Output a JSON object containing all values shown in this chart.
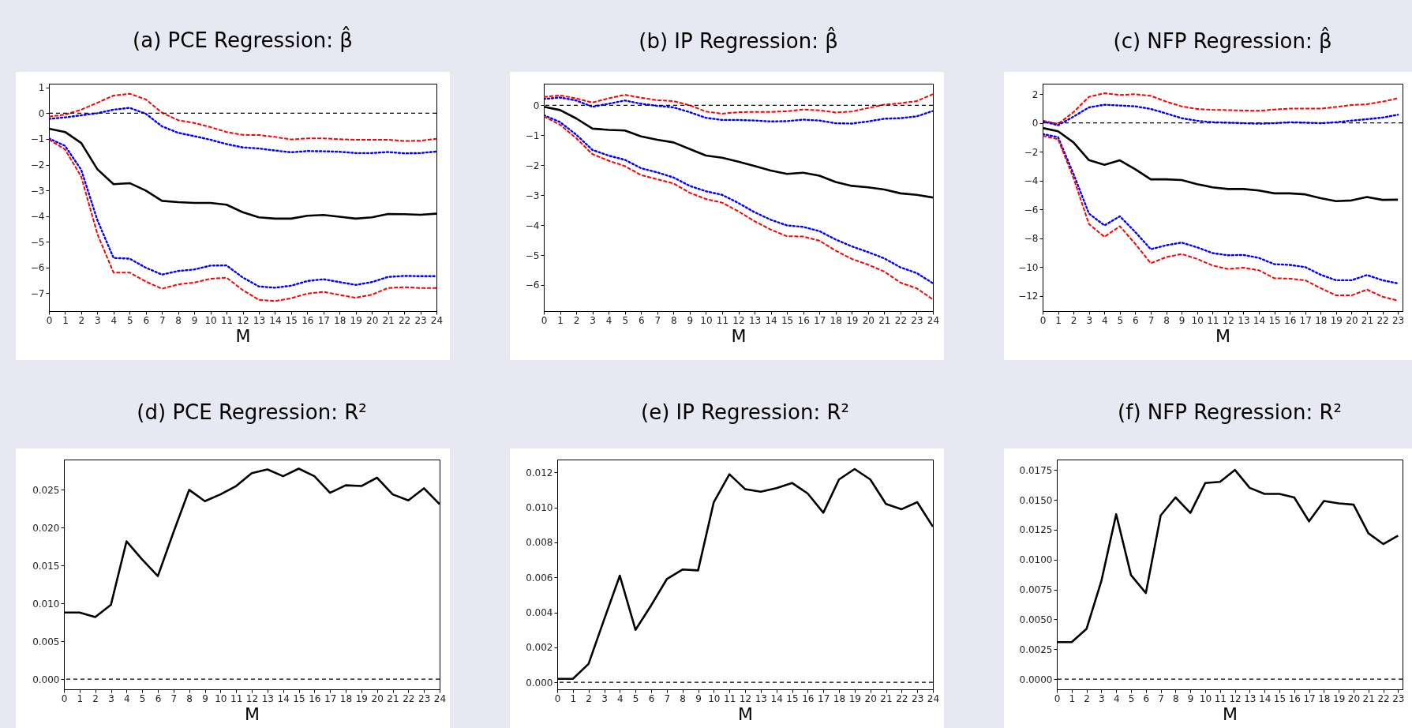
{
  "chart_data": [
    {
      "type": "line",
      "title": "(a) PCE Regression: β̂",
      "xlabel": "M",
      "x": [
        0,
        1,
        2,
        3,
        4,
        5,
        6,
        7,
        8,
        9,
        10,
        11,
        12,
        13,
        14,
        15,
        16,
        17,
        18,
        19,
        20,
        21,
        22,
        23,
        24
      ],
      "xlim": [
        0,
        24
      ],
      "xticks": [
        0,
        1,
        2,
        3,
        4,
        5,
        6,
        7,
        8,
        9,
        10,
        11,
        12,
        13,
        14,
        15,
        16,
        17,
        18,
        19,
        20,
        21,
        22,
        23,
        24
      ],
      "ylim": [
        -7.7,
        1.15
      ],
      "yticks": [
        -7,
        -6,
        -5,
        -4,
        -3,
        -2,
        -1,
        0,
        1
      ],
      "grid": false,
      "series": [
        {
          "color": "#ff0000",
          "line_style": "dashed",
          "values": [
            -0.13,
            -0.05,
            0.14,
            0.41,
            0.69,
            0.76,
            0.54,
            0.02,
            -0.27,
            -0.38,
            -0.54,
            -0.73,
            -0.84,
            -0.85,
            -0.92,
            -1.02,
            -0.98,
            -0.98,
            -1.01,
            -1.03,
            -1.03,
            -1.03,
            -1.08,
            -1.07,
            -0.99
          ]
        },
        {
          "color": "#0000ff",
          "line_style": "dotted",
          "values": [
            -0.22,
            -0.16,
            -0.08,
            0,
            0.14,
            0.21,
            -0.02,
            -0.51,
            -0.76,
            -0.89,
            -1.03,
            -1.2,
            -1.33,
            -1.37,
            -1.45,
            -1.52,
            -1.47,
            -1.48,
            -1.5,
            -1.55,
            -1.55,
            -1.51,
            -1.56,
            -1.55,
            -1.49
          ]
        },
        {
          "color": "#000000",
          "line_style": "solid",
          "values": [
            -0.6,
            -0.73,
            -1.16,
            -2.18,
            -2.76,
            -2.72,
            -3.01,
            -3.41,
            -3.46,
            -3.49,
            -3.49,
            -3.56,
            -3.85,
            -4.05,
            -4.1,
            -4.1,
            -3.99,
            -3.96,
            -4.03,
            -4.1,
            -4.05,
            -3.92,
            -3.93,
            -3.95,
            -3.91
          ]
        },
        {
          "color": "#0000ff",
          "line_style": "dotted",
          "values": [
            -0.98,
            -1.27,
            -2.2,
            -4.16,
            -5.63,
            -5.66,
            -6.01,
            -6.28,
            -6.14,
            -6.08,
            -5.93,
            -5.92,
            -6.39,
            -6.74,
            -6.79,
            -6.71,
            -6.53,
            -6.46,
            -6.57,
            -6.68,
            -6.57,
            -6.37,
            -6.33,
            -6.34,
            -6.34
          ]
        },
        {
          "color": "#ff0000",
          "line_style": "dashed",
          "values": [
            -1.02,
            -1.41,
            -2.47,
            -4.7,
            -6.2,
            -6.2,
            -6.55,
            -6.83,
            -6.66,
            -6.59,
            -6.44,
            -6.4,
            -6.88,
            -7.26,
            -7.31,
            -7.2,
            -7.02,
            -6.95,
            -7.07,
            -7.18,
            -7.06,
            -6.8,
            -6.77,
            -6.8,
            -6.8
          ]
        }
      ],
      "ref_lines": [
        {
          "axis": "y",
          "value": 0,
          "color": "#000000",
          "line_style": "dashed"
        }
      ]
    },
    {
      "type": "line",
      "title": "(b) IP Regression: β̂",
      "xlabel": "M",
      "x": [
        0,
        1,
        2,
        3,
        4,
        5,
        6,
        7,
        8,
        9,
        10,
        11,
        12,
        13,
        14,
        15,
        16,
        17,
        18,
        19,
        20,
        21,
        22,
        23,
        24
      ],
      "xlim": [
        0,
        24
      ],
      "xticks": [
        0,
        1,
        2,
        3,
        4,
        5,
        6,
        7,
        8,
        9,
        10,
        11,
        12,
        13,
        14,
        15,
        16,
        17,
        18,
        19,
        20,
        21,
        22,
        23,
        24
      ],
      "ylim": [
        -6.87,
        0.72
      ],
      "yticks": [
        -6,
        -5,
        -4,
        -3,
        -2,
        -1,
        0
      ],
      "grid": false,
      "series": [
        {
          "color": "#ff0000",
          "line_style": "dashed",
          "values": [
            0.28,
            0.33,
            0.23,
            0.09,
            0.23,
            0.35,
            0.25,
            0.17,
            0.14,
            0,
            -0.21,
            -0.28,
            -0.23,
            -0.22,
            -0.22,
            -0.2,
            -0.14,
            -0.17,
            -0.24,
            -0.21,
            -0.09,
            0.02,
            0.07,
            0.14,
            0.37
          ]
        },
        {
          "color": "#0000ff",
          "line_style": "dotted",
          "values": [
            0.21,
            0.26,
            0.16,
            -0.05,
            0.05,
            0.16,
            0.05,
            -0.02,
            -0.07,
            -0.23,
            -0.42,
            -0.49,
            -0.49,
            -0.51,
            -0.54,
            -0.53,
            -0.48,
            -0.51,
            -0.6,
            -0.61,
            -0.54,
            -0.45,
            -0.43,
            -0.37,
            -0.19
          ]
        },
        {
          "color": "#000000",
          "line_style": "solid",
          "values": [
            -0.05,
            -0.16,
            -0.44,
            -0.78,
            -0.82,
            -0.84,
            -1.04,
            -1.15,
            -1.24,
            -1.46,
            -1.68,
            -1.75,
            -1.88,
            -2.03,
            -2.18,
            -2.29,
            -2.25,
            -2.35,
            -2.56,
            -2.69,
            -2.74,
            -2.81,
            -2.94,
            -2.99,
            -3.08
          ]
        },
        {
          "color": "#0000ff",
          "line_style": "dotted",
          "values": [
            -0.33,
            -0.56,
            -0.98,
            -1.49,
            -1.68,
            -1.82,
            -2.1,
            -2.24,
            -2.41,
            -2.69,
            -2.87,
            -2.99,
            -3.26,
            -3.57,
            -3.82,
            -4.01,
            -4.06,
            -4.2,
            -4.48,
            -4.71,
            -4.9,
            -5.11,
            -5.41,
            -5.6,
            -5.94
          ]
        },
        {
          "color": "#ff0000",
          "line_style": "dashed",
          "values": [
            -0.37,
            -0.65,
            -1.1,
            -1.63,
            -1.85,
            -2.03,
            -2.33,
            -2.47,
            -2.61,
            -2.92,
            -3.13,
            -3.25,
            -3.54,
            -3.87,
            -4.15,
            -4.37,
            -4.38,
            -4.52,
            -4.85,
            -5.13,
            -5.32,
            -5.55,
            -5.92,
            -6.11,
            -6.48
          ]
        }
      ],
      "ref_lines": [
        {
          "axis": "y",
          "value": 0,
          "color": "#000000",
          "line_style": "dashed"
        }
      ]
    },
    {
      "type": "line",
      "title": "(c) NFP Regression: β̂",
      "xlabel": "M",
      "x": [
        0,
        1,
        2,
        3,
        4,
        5,
        6,
        7,
        8,
        9,
        10,
        11,
        12,
        13,
        14,
        15,
        16,
        17,
        18,
        19,
        20,
        21,
        22,
        23
      ],
      "xlim": [
        0,
        23.3
      ],
      "xticks": [
        0,
        1,
        2,
        3,
        4,
        5,
        6,
        7,
        8,
        9,
        10,
        11,
        12,
        13,
        14,
        15,
        16,
        17,
        18,
        19,
        20,
        21,
        22,
        23
      ],
      "ylim": [
        -13.04,
        2.72
      ],
      "yticks": [
        -12,
        -10,
        -8,
        -6,
        -4,
        -2,
        0,
        2
      ],
      "grid": false,
      "series": [
        {
          "color": "#ff0000",
          "line_style": "dashed",
          "values": [
            0.16,
            -0.07,
            0.75,
            1.81,
            2.06,
            1.94,
            1.99,
            1.88,
            1.48,
            1.15,
            0.97,
            0.91,
            0.89,
            0.86,
            0.84,
            0.93,
            1.0,
            0.99,
            0.99,
            1.11,
            1.24,
            1.3,
            1.48,
            1.7
          ]
        },
        {
          "color": "#0000ff",
          "line_style": "dotted",
          "values": [
            0.11,
            -0.16,
            0.44,
            1.08,
            1.26,
            1.21,
            1.15,
            0.97,
            0.66,
            0.33,
            0.15,
            0.05,
            0.02,
            -0.02,
            -0.05,
            -0.02,
            0.05,
            0.02,
            -0.02,
            0.05,
            0.16,
            0.26,
            0.37,
            0.57
          ]
        },
        {
          "color": "#000000",
          "line_style": "solid",
          "values": [
            -0.35,
            -0.58,
            -1.35,
            -2.58,
            -2.9,
            -2.59,
            -3.21,
            -3.91,
            -3.91,
            -3.96,
            -4.24,
            -4.46,
            -4.58,
            -4.58,
            -4.68,
            -4.88,
            -4.88,
            -4.95,
            -5.22,
            -5.42,
            -5.37,
            -5.13,
            -5.33,
            -5.32
          ]
        },
        {
          "color": "#0000ff",
          "line_style": "dotted",
          "values": [
            -0.77,
            -0.99,
            -3.54,
            -6.28,
            -7.1,
            -6.47,
            -7.56,
            -8.75,
            -8.48,
            -8.29,
            -8.62,
            -9.02,
            -9.17,
            -9.15,
            -9.35,
            -9.79,
            -9.84,
            -9.99,
            -10.52,
            -10.9,
            -10.9,
            -10.54,
            -10.9,
            -11.12
          ]
        },
        {
          "color": "#ff0000",
          "line_style": "dashed",
          "values": [
            -0.89,
            -1.13,
            -3.82,
            -7.01,
            -7.89,
            -7.16,
            -8.38,
            -9.72,
            -9.3,
            -9.08,
            -9.42,
            -9.88,
            -10.12,
            -10.03,
            -10.21,
            -10.76,
            -10.79,
            -10.9,
            -11.45,
            -11.95,
            -11.95,
            -11.55,
            -12.04,
            -12.31
          ]
        }
      ],
      "ref_lines": [
        {
          "axis": "y",
          "value": 0,
          "color": "#000000",
          "line_style": "dashed"
        }
      ]
    },
    {
      "type": "line",
      "title": "(d) PCE Regression: R²",
      "xlabel": "M",
      "x": [
        0,
        1,
        2,
        3,
        4,
        5,
        6,
        7,
        8,
        9,
        10,
        11,
        12,
        13,
        14,
        15,
        16,
        17,
        18,
        19,
        20,
        21,
        22,
        23,
        24
      ],
      "xlim": [
        0,
        24
      ],
      "xticks": [
        0,
        1,
        2,
        3,
        4,
        5,
        6,
        7,
        8,
        9,
        10,
        11,
        12,
        13,
        14,
        15,
        16,
        17,
        18,
        19,
        20,
        21,
        22,
        23,
        24
      ],
      "ylim": [
        -0.00135,
        0.029
      ],
      "yticks": [
        {
          "value": 0,
          "label": "0.000"
        },
        0.005,
        {
          "value": 0.01,
          "label": "0.010"
        },
        0.015,
        {
          "value": 0.02,
          "label": "0.020"
        },
        0.025
      ],
      "grid": false,
      "series": [
        {
          "color": "#000000",
          "line_style": "solid",
          "values": [
            0.0088,
            0.0088,
            0.0082,
            0.0098,
            0.0182,
            0.0158,
            0.0136,
            0.0194,
            0.025,
            0.0235,
            0.0244,
            0.0255,
            0.0272,
            0.0277,
            0.0268,
            0.0278,
            0.0268,
            0.0246,
            0.0256,
            0.0255,
            0.0266,
            0.0244,
            0.0236,
            0.0252,
            0.0231
          ]
        }
      ],
      "ref_lines": [
        {
          "axis": "y",
          "value": 0,
          "color": "#000000",
          "line_style": "dashed"
        }
      ]
    },
    {
      "type": "line",
      "title": "(e) IP Regression: R²",
      "xlabel": "M",
      "x": [
        0,
        1,
        2,
        3,
        4,
        5,
        6,
        7,
        8,
        9,
        10,
        11,
        12,
        13,
        14,
        15,
        16,
        17,
        18,
        19,
        20,
        21,
        22,
        23,
        24
      ],
      "xlim": [
        0,
        24
      ],
      "xticks": [
        0,
        1,
        2,
        3,
        4,
        5,
        6,
        7,
        8,
        9,
        10,
        11,
        12,
        13,
        14,
        15,
        16,
        17,
        18,
        19,
        20,
        21,
        22,
        23,
        24
      ],
      "ylim": [
        -0.0004,
        0.01274
      ],
      "yticks": [
        {
          "value": 0,
          "label": "0.000"
        },
        0.002,
        0.004,
        0.006,
        0.008,
        {
          "value": 0.01,
          "label": "0.010"
        },
        0.012
      ],
      "grid": false,
      "series": [
        {
          "color": "#000000",
          "line_style": "solid",
          "values": [
            0.0002,
            0.0002,
            0.00105,
            0.0036,
            0.0061,
            0.003,
            0.0044,
            0.0059,
            0.00645,
            0.0064,
            0.0103,
            0.0119,
            0.01105,
            0.0109,
            0.0111,
            0.0114,
            0.0108,
            0.0097,
            0.0116,
            0.0122,
            0.0116,
            0.0102,
            0.0099,
            0.0103,
            0.0089
          ]
        }
      ],
      "ref_lines": [
        {
          "axis": "y",
          "value": 0,
          "color": "#000000",
          "line_style": "dashed"
        }
      ]
    },
    {
      "type": "line",
      "title": "(f) NFP Regression: R²",
      "xlabel": "M",
      "x": [
        0,
        1,
        2,
        3,
        4,
        5,
        6,
        7,
        8,
        9,
        10,
        11,
        12,
        13,
        14,
        15,
        16,
        17,
        18,
        19,
        20,
        21,
        22,
        23
      ],
      "xlim": [
        0,
        23.3
      ],
      "xticks": [
        0,
        1,
        2,
        3,
        4,
        5,
        6,
        7,
        8,
        9,
        10,
        11,
        12,
        13,
        14,
        15,
        16,
        17,
        18,
        19,
        20,
        21,
        22,
        23
      ],
      "ylim": [
        -0.00085,
        0.01837
      ],
      "yticks": [
        {
          "value": 0,
          "label": "0.0000"
        },
        0.0025,
        {
          "value": 0.005,
          "label": "0.0050"
        },
        0.0075,
        {
          "value": 0.01,
          "label": "0.0100"
        },
        0.0125,
        {
          "value": 0.015,
          "label": "0.0150"
        },
        0.0175
      ],
      "grid": false,
      "series": [
        {
          "color": "#000000",
          "line_style": "solid",
          "values": [
            0.0031,
            0.0031,
            0.0042,
            0.0082,
            0.0138,
            0.0087,
            0.0072,
            0.0137,
            0.0152,
            0.0139,
            0.0164,
            0.0165,
            0.0175,
            0.016,
            0.0155,
            0.0155,
            0.0152,
            0.0132,
            0.0149,
            0.0147,
            0.0146,
            0.0122,
            0.0113,
            0.012
          ]
        }
      ],
      "ref_lines": [
        {
          "axis": "y",
          "value": 0,
          "color": "#000000",
          "line_style": "dashed"
        }
      ]
    }
  ]
}
